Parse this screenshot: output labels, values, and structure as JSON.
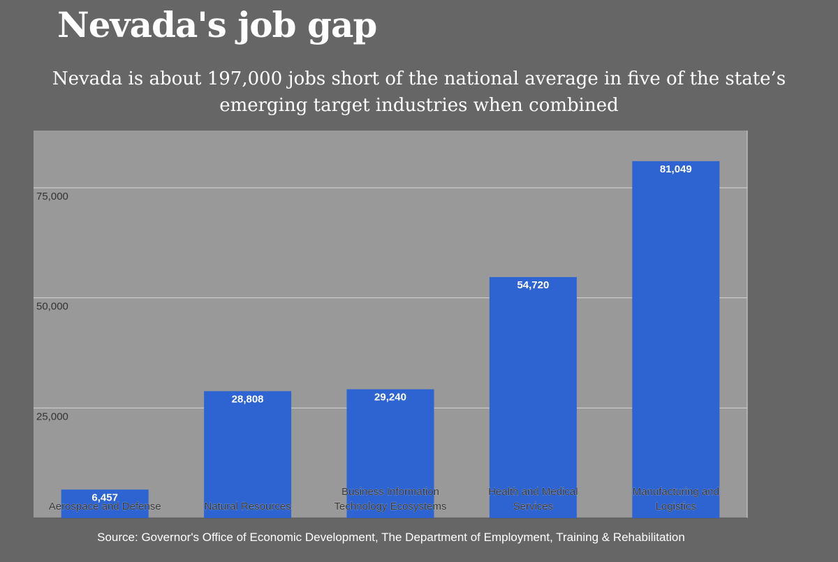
{
  "header": {
    "title": "Nevada's job gap",
    "subtitle_line1": "Nevada is about 197,000 jobs short of the national average in five of the state’s",
    "subtitle_line2": "emerging target industries when combined"
  },
  "footer": {
    "source": "Source: Governor's Office of Economic Development, The Department of Employment, Training & Rehabilitation"
  },
  "colors": {
    "background": "#666666",
    "plot_background": "#999999",
    "bar": "#2d64d2",
    "gridline": "#d6d6d6",
    "text": "#ffffff",
    "axis_text": "#333333"
  },
  "chart_data": {
    "type": "bar",
    "title": "Nevada's job gap",
    "subtitle": "Nevada is about 197,000 jobs short of the national average in five of the state’s emerging target industries when combined",
    "xlabel": "",
    "ylabel": "",
    "ylim": [
      0,
      88000
    ],
    "yticks": [
      25000,
      50000,
      75000
    ],
    "ytick_labels": [
      "25,000",
      "50,000",
      "75,000"
    ],
    "grid": true,
    "categories": [
      [
        "Aerospace and Defense"
      ],
      [
        "Natural Resources"
      ],
      [
        "Business Information",
        "Technology Ecosystems"
      ],
      [
        "Health and Medical",
        "Services"
      ],
      [
        "Manufacturing and",
        "Logistics"
      ]
    ],
    "values": [
      6457,
      28808,
      29240,
      54720,
      81049
    ],
    "value_labels": [
      "6,457",
      "28,808",
      "29,240",
      "54,720",
      "81,049"
    ]
  }
}
